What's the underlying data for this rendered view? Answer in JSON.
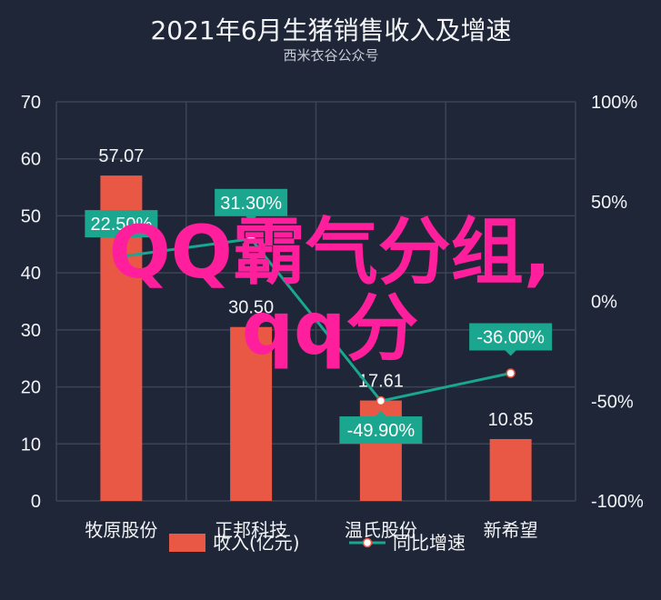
{
  "chart_data": {
    "type": "bar",
    "title": "2021年6月生猪销售收入及增速",
    "subtitle": "西米衣谷公众号",
    "categories": [
      "牧原股份",
      "正邦科技",
      "温氏股份",
      "新希望"
    ],
    "series": [
      {
        "name": "收入(亿元)",
        "type": "bar",
        "axis": "left",
        "values": [
          57.07,
          30.5,
          17.61,
          10.85
        ],
        "labels": [
          "57.07",
          "30.50",
          "17.61",
          "10.85"
        ],
        "color": "#e85845"
      },
      {
        "name": "同比增速",
        "type": "line",
        "axis": "right",
        "values": [
          22.5,
          31.3,
          -49.9,
          -36.0
        ],
        "labels": [
          "22.50%",
          "31.30%",
          "-49.90%",
          "-36.00%"
        ],
        "color": "#1aa68f"
      }
    ],
    "y_left": {
      "min": 0,
      "max": 70,
      "ticks": [
        0,
        10,
        20,
        30,
        40,
        50,
        60,
        70
      ],
      "tick_labels": [
        "0",
        "10",
        "20",
        "30",
        "40",
        "50",
        "60",
        "70"
      ]
    },
    "y_right": {
      "min": -100,
      "max": 100,
      "ticks": [
        -100,
        -50,
        0,
        50,
        100
      ],
      "tick_labels": [
        "-100%",
        "-50%",
        "0%",
        "50%",
        "100%"
      ]
    },
    "grid": true,
    "legend_position": "bottom"
  },
  "watermark": {
    "line1": "QQ霸气分组,",
    "line2": "qq分"
  },
  "colors": {
    "background": "#1f2637",
    "grid": "#3b4355",
    "bar": "#e85845",
    "line": "#1aa68f",
    "marker_fill": "#ffffff",
    "marker_stroke": "#e85845",
    "watermark": "#ff1f9d"
  }
}
